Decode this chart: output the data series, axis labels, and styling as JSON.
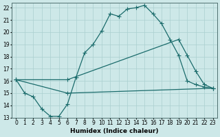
{
  "xlabel": "Humidex (Indice chaleur)",
  "xlim": [
    -0.5,
    23.5
  ],
  "ylim": [
    13,
    22.4
  ],
  "xticks": [
    0,
    1,
    2,
    3,
    4,
    5,
    6,
    7,
    8,
    9,
    10,
    11,
    12,
    13,
    14,
    15,
    16,
    17,
    18,
    19,
    20,
    21,
    22,
    23
  ],
  "yticks": [
    13,
    14,
    15,
    16,
    17,
    18,
    19,
    20,
    21,
    22
  ],
  "bg_color": "#cde8e8",
  "grid_color": "#aacfcf",
  "line_color": "#1a6b6b",
  "line1_x": [
    0,
    1,
    2,
    3,
    4,
    5,
    6,
    7,
    8,
    9,
    10,
    11,
    12,
    13,
    14,
    15,
    16,
    17,
    18,
    19,
    20,
    21,
    22,
    23
  ],
  "line1_y": [
    16.1,
    15.0,
    14.7,
    13.7,
    13.1,
    13.1,
    14.1,
    16.3,
    18.3,
    19.0,
    20.1,
    21.5,
    21.3,
    21.9,
    22.0,
    22.2,
    21.5,
    20.7,
    19.4,
    18.1,
    16.0,
    15.7,
    15.5,
    15.4
  ],
  "line2_x": [
    0,
    6,
    19,
    20,
    21,
    22,
    23
  ],
  "line2_y": [
    16.1,
    16.1,
    19.4,
    18.1,
    16.8,
    15.7,
    15.4
  ],
  "line3_x": [
    0,
    6,
    23
  ],
  "line3_y": [
    16.1,
    15.0,
    15.4
  ]
}
